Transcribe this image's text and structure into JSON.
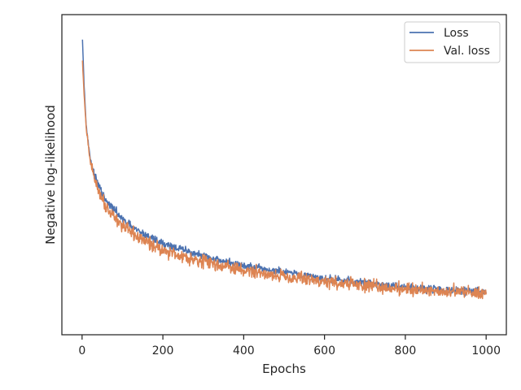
{
  "chart_data": {
    "type": "line",
    "xlabel": "Epochs",
    "ylabel": "Negative log-likelihood",
    "xlim": [
      -50,
      1050
    ],
    "ylim": [
      0,
      1
    ],
    "x_ticks": [
      0,
      200,
      400,
      600,
      800,
      1000
    ],
    "x_tick_labels": [
      "0",
      "200",
      "400",
      "600",
      "800",
      "1000"
    ],
    "y_ticks_visible": false,
    "grid": false,
    "legend": {
      "placement": "top-right",
      "entries": [
        "Loss",
        "Val. loss"
      ]
    },
    "series": [
      {
        "name": "Loss",
        "color": "#4c72b0",
        "x": [
          0,
          5,
          10,
          15,
          20,
          30,
          40,
          50,
          60,
          80,
          100,
          130,
          160,
          200,
          250,
          300,
          350,
          400,
          450,
          500,
          550,
          600,
          650,
          700,
          750,
          800,
          850,
          900,
          950,
          1000
        ],
        "y": [
          0.96,
          0.78,
          0.66,
          0.6,
          0.555,
          0.5,
          0.47,
          0.44,
          0.415,
          0.39,
          0.36,
          0.33,
          0.31,
          0.285,
          0.265,
          0.245,
          0.23,
          0.215,
          0.205,
          0.195,
          0.185,
          0.175,
          0.17,
          0.162,
          0.155,
          0.15,
          0.145,
          0.14,
          0.137,
          0.135
        ],
        "noise": 0.018
      },
      {
        "name": "Val. loss",
        "color": "#dd8452",
        "x": [
          0,
          5,
          10,
          15,
          20,
          30,
          40,
          50,
          60,
          80,
          100,
          130,
          160,
          200,
          250,
          300,
          350,
          400,
          450,
          500,
          550,
          600,
          650,
          700,
          750,
          800,
          850,
          900,
          950,
          1000
        ],
        "y": [
          0.88,
          0.75,
          0.65,
          0.59,
          0.545,
          0.49,
          0.455,
          0.425,
          0.4,
          0.37,
          0.34,
          0.31,
          0.29,
          0.265,
          0.245,
          0.23,
          0.215,
          0.2,
          0.192,
          0.183,
          0.175,
          0.166,
          0.16,
          0.153,
          0.148,
          0.143,
          0.14,
          0.136,
          0.133,
          0.132
        ],
        "noise": 0.03
      }
    ]
  }
}
